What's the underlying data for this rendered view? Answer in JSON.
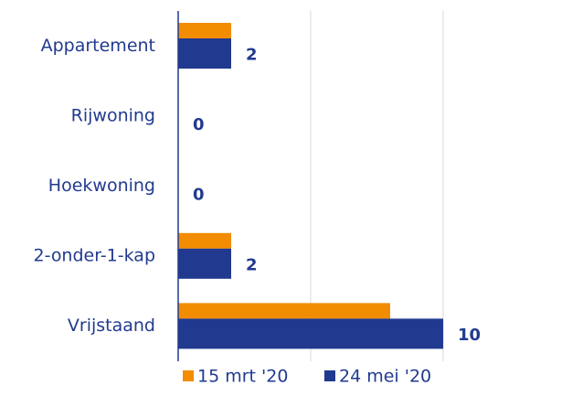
{
  "chart_data": {
    "type": "bar",
    "orientation": "horizontal",
    "categories": [
      "Appartement",
      "Rijwoning",
      "Hoekwoning",
      "2-onder-1-kap",
      "Vrijstaand"
    ],
    "series": [
      {
        "name": "15 mrt '20",
        "color": "#f28c00",
        "values": [
          2,
          0,
          0,
          2,
          8
        ]
      },
      {
        "name": "24 mei '20",
        "color": "#213a8f",
        "values": [
          2,
          0,
          0,
          2,
          10
        ],
        "data_labels": true
      }
    ],
    "xlim": [
      0,
      10
    ],
    "xticks": [
      0,
      5,
      10
    ],
    "grid": true,
    "legend": "bottom"
  }
}
